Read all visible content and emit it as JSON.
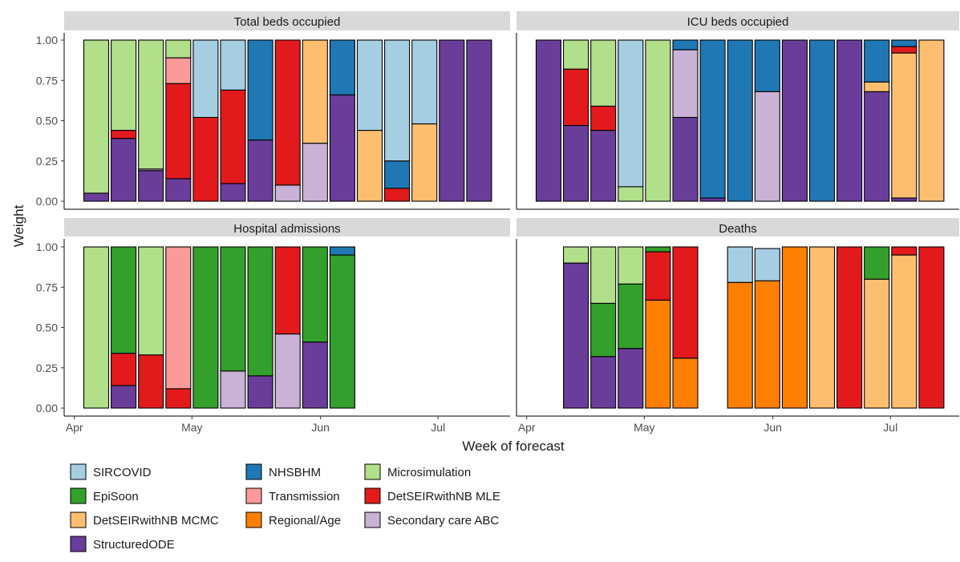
{
  "chart_data": {
    "type": "bar",
    "stacked": true,
    "ylabel": "Weight",
    "xlabel": "Week of forecast",
    "ylim": [
      0,
      1
    ],
    "yticks": [
      "0.00",
      "0.25",
      "0.50",
      "0.75",
      "1.00"
    ],
    "xticks": [
      "Apr",
      "May",
      "Jun",
      "Jul"
    ],
    "stack_order_bottom_to_top": [
      "StructuredODE",
      "Secondary care ABC",
      "Regional/Age",
      "DetSEIRwithNB MCMC",
      "DetSEIRwithNB MLE",
      "Transmission",
      "EpiSoon",
      "Microsimulation",
      "NHSBHM",
      "SIRCOVID"
    ],
    "legend": {
      "placement": "bottom",
      "entries": [
        {
          "name": "SIRCOVID",
          "color": "#a6cee3"
        },
        {
          "name": "NHSBHM",
          "color": "#1f78b4"
        },
        {
          "name": "Microsimulation",
          "color": "#b2df8a"
        },
        {
          "name": "EpiSoon",
          "color": "#33a02c"
        },
        {
          "name": "Transmission",
          "color": "#fb9a99"
        },
        {
          "name": "DetSEIRwithNB MLE",
          "color": "#e31a1c"
        },
        {
          "name": "DetSEIRwithNB MCMC",
          "color": "#fdbf6f"
        },
        {
          "name": "Regional/Age",
          "color": "#ff7f00"
        },
        {
          "name": "Secondary care ABC",
          "color": "#cab2d6"
        },
        {
          "name": "StructuredODE",
          "color": "#6a3d9a"
        }
      ]
    },
    "panels": [
      {
        "title": "Total beds occupied",
        "weeks": [
          1,
          2,
          3,
          4,
          5,
          6,
          7,
          8,
          9,
          10,
          11,
          12,
          13,
          14,
          15
        ],
        "series": [
          {
            "name": "StructuredODE",
            "values": [
              0.05,
              0.39,
              0.19,
              0.14,
              0.0,
              0.11,
              0.38,
              0.0,
              0.0,
              0.66,
              0.0,
              0.0,
              0.0,
              1.0,
              1.0
            ]
          },
          {
            "name": "Secondary care ABC",
            "values": [
              0,
              0,
              0.01,
              0,
              0,
              0,
              0,
              0.1,
              0.36,
              0,
              0,
              0,
              0,
              0,
              0
            ]
          },
          {
            "name": "DetSEIRwithNB MCMC",
            "values": [
              0,
              0,
              0,
              0,
              0,
              0,
              0,
              0,
              0.64,
              0,
              0.44,
              0,
              0.48,
              0,
              0
            ]
          },
          {
            "name": "DetSEIRwithNB MLE",
            "values": [
              0,
              0.05,
              0,
              0.59,
              0.52,
              0.58,
              0,
              0.9,
              0,
              0,
              0,
              0.08,
              0,
              0,
              0
            ]
          },
          {
            "name": "Transmission",
            "values": [
              0,
              0,
              0,
              0.16,
              0,
              0,
              0,
              0,
              0,
              0,
              0,
              0,
              0,
              0,
              0
            ]
          },
          {
            "name": "Microsimulation",
            "values": [
              0.95,
              0.56,
              0.8,
              0.11,
              0,
              0,
              0,
              0,
              0,
              0,
              0,
              0,
              0,
              0,
              0
            ]
          },
          {
            "name": "NHSBHM",
            "values": [
              0,
              0,
              0,
              0,
              0,
              0,
              0.62,
              0,
              0,
              0.34,
              0,
              0.17,
              0,
              0,
              0
            ]
          },
          {
            "name": "SIRCOVID",
            "values": [
              0,
              0,
              0,
              0,
              0.48,
              0.31,
              0,
              0,
              0,
              0,
              0.56,
              0.75,
              0.52,
              0,
              0
            ]
          }
        ]
      },
      {
        "title": "ICU beds occupied",
        "weeks": [
          1,
          2,
          3,
          4,
          5,
          6,
          7,
          8,
          9,
          10,
          11,
          12,
          13,
          14,
          15
        ],
        "series": [
          {
            "name": "StructuredODE",
            "values": [
              1.0,
              0.47,
              0.44,
              0.0,
              0.0,
              0.52,
              0.02,
              0.0,
              0.0,
              1.0,
              0.0,
              1.0,
              0.68,
              0.02,
              0.0
            ]
          },
          {
            "name": "Secondary care ABC",
            "values": [
              0,
              0,
              0,
              0,
              0,
              0.42,
              0,
              0,
              0.68,
              0,
              0,
              0,
              0,
              0,
              0
            ]
          },
          {
            "name": "DetSEIRwithNB MCMC",
            "values": [
              0,
              0,
              0,
              0,
              0,
              0,
              0,
              0,
              0,
              0,
              0,
              0,
              0.06,
              0.9,
              1.0
            ]
          },
          {
            "name": "DetSEIRwithNB MLE",
            "values": [
              0,
              0.35,
              0.15,
              0,
              0,
              0,
              0,
              0,
              0,
              0,
              0,
              0,
              0,
              0.04,
              0
            ]
          },
          {
            "name": "Microsimulation",
            "values": [
              0,
              0.18,
              0.41,
              0.09,
              1.0,
              0,
              0,
              0,
              0,
              0,
              0,
              0,
              0,
              0,
              0
            ]
          },
          {
            "name": "NHSBHM",
            "values": [
              0,
              0,
              0,
              0,
              0,
              0.06,
              0.98,
              1.0,
              0.32,
              0,
              1.0,
              0,
              0.26,
              0.04,
              0
            ]
          },
          {
            "name": "SIRCOVID",
            "values": [
              0,
              0,
              0,
              0.91,
              0,
              0,
              0,
              0,
              0,
              0,
              0,
              0,
              0,
              0,
              0
            ]
          }
        ]
      },
      {
        "title": "Hospital admissions",
        "weeks": [
          1,
          2,
          3,
          4,
          5,
          6,
          7,
          8,
          9,
          10
        ],
        "series": [
          {
            "name": "StructuredODE",
            "values": [
              0,
              0.14,
              0,
              0,
              0,
              0,
              0.2,
              0,
              0.41,
              0
            ]
          },
          {
            "name": "Secondary care ABC",
            "values": [
              0,
              0,
              0,
              0,
              0,
              0.23,
              0,
              0.46,
              0,
              0
            ]
          },
          {
            "name": "DetSEIRwithNB MLE",
            "values": [
              0,
              0.2,
              0.33,
              0.12,
              0,
              0,
              0,
              0.54,
              0,
              0
            ]
          },
          {
            "name": "Transmission",
            "values": [
              0,
              0,
              0,
              0.88,
              0,
              0,
              0,
              0,
              0,
              0
            ]
          },
          {
            "name": "EpiSoon",
            "values": [
              0,
              0.66,
              0,
              0,
              1.0,
              0.77,
              0.8,
              0,
              0.59,
              0.95
            ]
          },
          {
            "name": "Microsimulation",
            "values": [
              1.0,
              0,
              0.67,
              0,
              0,
              0,
              0,
              0,
              0,
              0
            ]
          },
          {
            "name": "NHSBHM",
            "values": [
              0,
              0,
              0,
              0,
              0,
              0,
              0,
              0,
              0,
              0.05
            ]
          }
        ]
      },
      {
        "title": "Deaths",
        "weeks": [
          2,
          3,
          4,
          5,
          6,
          8,
          9,
          10,
          11,
          12,
          13,
          14,
          15
        ],
        "series": [
          {
            "name": "StructuredODE",
            "values": [
              0.9,
              0.32,
              0.37,
              0,
              0,
              0,
              0,
              0,
              0,
              0,
              0,
              0,
              0
            ]
          },
          {
            "name": "Regional/Age",
            "values": [
              0,
              0,
              0,
              0.67,
              0.31,
              0.78,
              0.79,
              1.0,
              0,
              0,
              0,
              0,
              0
            ]
          },
          {
            "name": "DetSEIRwithNB MCMC",
            "values": [
              0,
              0,
              0,
              0,
              0,
              0,
              0,
              0,
              1.0,
              0,
              0.8,
              0.95,
              0
            ]
          },
          {
            "name": "DetSEIRwithNB MLE",
            "values": [
              0,
              0,
              0,
              0.3,
              0.69,
              0,
              0,
              0,
              0,
              1.0,
              0,
              0.05,
              1.0
            ]
          },
          {
            "name": "EpiSoon",
            "values": [
              0,
              0.33,
              0.4,
              0.03,
              0,
              0,
              0,
              0,
              0,
              0,
              0.2,
              0,
              0
            ]
          },
          {
            "name": "Microsimulation",
            "values": [
              0.1,
              0.35,
              0.23,
              0,
              0,
              0,
              0,
              0,
              0,
              0,
              0,
              0,
              0
            ]
          },
          {
            "name": "SIRCOVID",
            "values": [
              0,
              0,
              0,
              0,
              0,
              0.22,
              0.2,
              0,
              0,
              0,
              0,
              0,
              0
            ]
          }
        ]
      }
    ]
  }
}
